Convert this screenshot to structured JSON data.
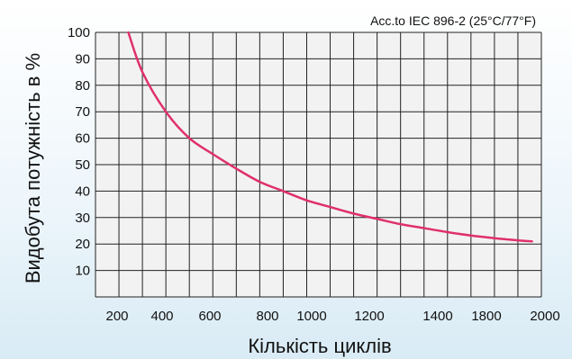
{
  "chart_data": {
    "type": "line",
    "title": "",
    "annotation": "Acc.to IEC 896-2 (25°C/77°F)",
    "xlabel": "Кількість циклів",
    "ylabel": "Видобута потужність в %",
    "x_tick_labels": [
      "200",
      "400",
      "600",
      "800",
      "1000",
      "1200",
      "1400",
      "1800",
      "2000"
    ],
    "y_ticks": [
      10,
      20,
      30,
      40,
      50,
      60,
      70,
      80,
      90,
      100
    ],
    "xlim": [
      100,
      2000
    ],
    "ylim": [
      0,
      100
    ],
    "grid": true,
    "line_color": "#e0306a",
    "grid_color": "#222222",
    "plot_background": "#f2f2f2",
    "series": [
      {
        "x": [
          240,
          300,
          400,
          500,
          600,
          700,
          800,
          900,
          1000,
          1100,
          1200,
          1300,
          1400,
          1500,
          1600,
          1700,
          1800,
          1900,
          1960
        ],
        "values": [
          100,
          85,
          70,
          60,
          54,
          48.5,
          43.5,
          40,
          36.5,
          34,
          31.5,
          29.5,
          27.5,
          26,
          24.5,
          23.2,
          22.2,
          21.4,
          21
        ]
      }
    ]
  }
}
